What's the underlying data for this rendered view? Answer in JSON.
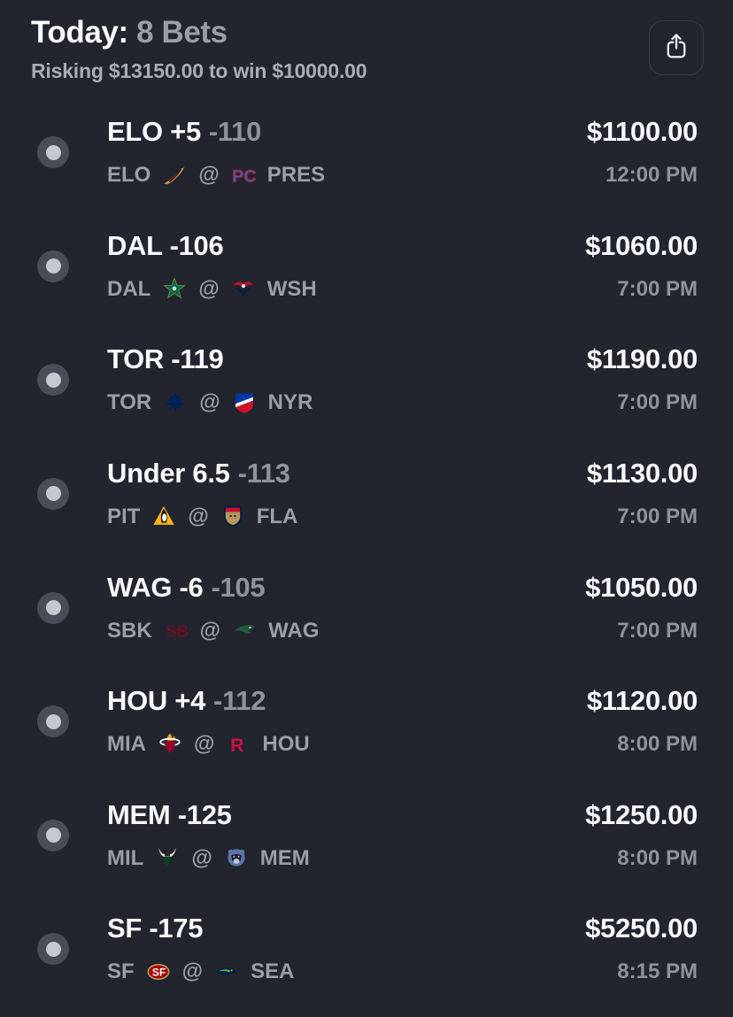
{
  "header": {
    "title_prefix": "Today: ",
    "title_count": "8 Bets",
    "subtitle": "Risking $13150.00 to win $10000.00"
  },
  "strings": {
    "at": "@"
  },
  "icons": {
    "share": "share-icon",
    "radio": "bet-radio-icon"
  },
  "colors": {
    "background": "#22242e",
    "text_primary": "#f7f8fa",
    "text_muted": "#8f929c",
    "radio_ring": "#494d58",
    "radio_dot": "#c5c8ce",
    "share_border": "#3b3e48"
  },
  "bets": [
    {
      "selection": "ELO +5",
      "odds": "-110",
      "away_abbr": "ELO",
      "away_logo": "elon-phoenix",
      "home_abbr": "PRES",
      "home_logo": "presbyterian-pc",
      "amount": "$1100.00",
      "time": "12:00 PM"
    },
    {
      "selection": "DAL -106",
      "odds": "",
      "away_abbr": "DAL",
      "away_logo": "dallas-stars",
      "home_abbr": "WSH",
      "home_logo": "washington-capitals",
      "amount": "$1060.00",
      "time": "7:00 PM"
    },
    {
      "selection": "TOR -119",
      "odds": "",
      "away_abbr": "TOR",
      "away_logo": "toronto-maple-leafs",
      "home_abbr": "NYR",
      "home_logo": "new-york-rangers",
      "amount": "$1190.00",
      "time": "7:00 PM"
    },
    {
      "selection": "Under 6.5",
      "odds": "-113",
      "away_abbr": "PIT",
      "away_logo": "pittsburgh-penguins",
      "home_abbr": "FLA",
      "home_logo": "florida-panthers",
      "amount": "$1130.00",
      "time": "7:00 PM"
    },
    {
      "selection": "WAG -6",
      "odds": "-105",
      "away_abbr": "SBK",
      "away_logo": "stony-brook-sb",
      "home_abbr": "WAG",
      "home_logo": "wagner-seahawks",
      "amount": "$1050.00",
      "time": "7:00 PM"
    },
    {
      "selection": "HOU +4",
      "odds": "-112",
      "away_abbr": "MIA",
      "away_logo": "miami-heat",
      "home_abbr": "HOU",
      "home_logo": "houston-rockets",
      "amount": "$1120.00",
      "time": "8:00 PM"
    },
    {
      "selection": "MEM -125",
      "odds": "",
      "away_abbr": "MIL",
      "away_logo": "milwaukee-bucks",
      "home_abbr": "MEM",
      "home_logo": "memphis-grizzlies",
      "amount": "$1250.00",
      "time": "8:00 PM"
    },
    {
      "selection": "SF -175",
      "odds": "",
      "away_abbr": "SF",
      "away_logo": "sf-49ers",
      "home_abbr": "SEA",
      "home_logo": "seattle-seahawks",
      "amount": "$5250.00",
      "time": "8:15 PM"
    }
  ]
}
